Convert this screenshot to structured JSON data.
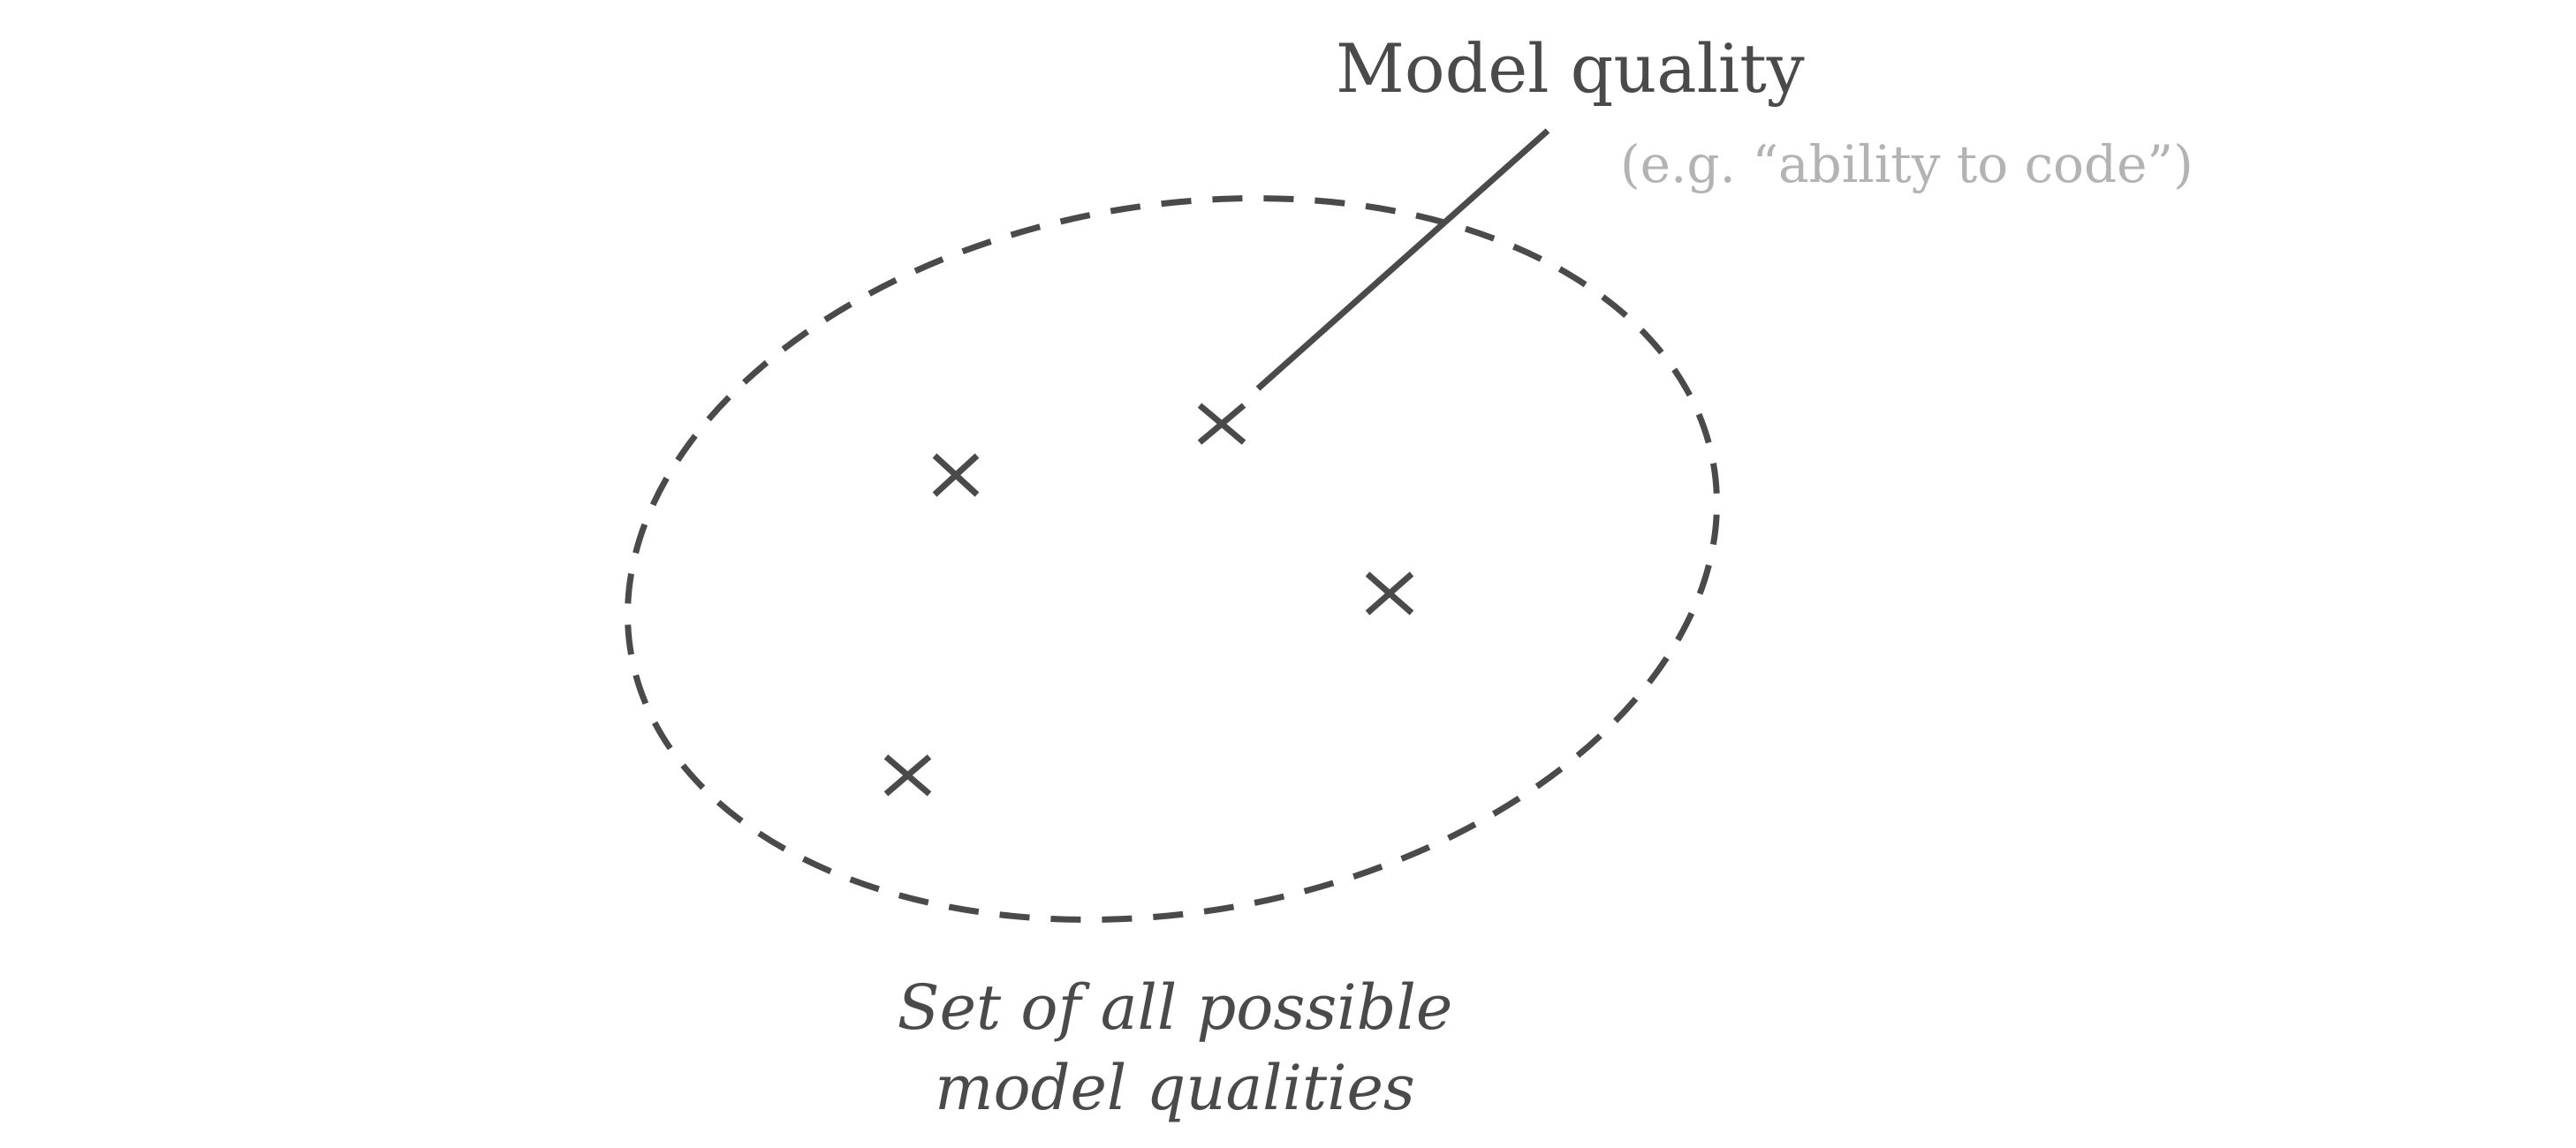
{
  "diagram": {
    "callout_title": "Model quality",
    "callout_example": "(e.g. “ability to code”)",
    "set_caption_line1": "Set of all possible",
    "set_caption_line2": "model qualities",
    "point_markers": [
      "×",
      "×",
      "×",
      "×"
    ]
  },
  "colors": {
    "ink": "#4a4a4a",
    "muted": "#b3b3b3",
    "background": "#ffffff"
  }
}
